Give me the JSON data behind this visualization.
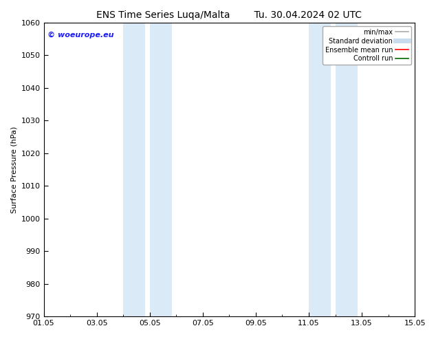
{
  "title_left": "ENS Time Series Luqa/Malta",
  "title_right": "Tu. 30.04.2024 02 UTC",
  "ylabel": "Surface Pressure (hPa)",
  "ylim": [
    970,
    1060
  ],
  "yticks": [
    970,
    980,
    990,
    1000,
    1010,
    1020,
    1030,
    1040,
    1050,
    1060
  ],
  "xtick_labels": [
    "01.05",
    "03.05",
    "05.05",
    "07.05",
    "09.05",
    "11.05",
    "13.05",
    "15.05"
  ],
  "xtick_positions": [
    0,
    2,
    4,
    6,
    8,
    10,
    12,
    14
  ],
  "x_days": 14,
  "shaded_bands": [
    {
      "x_start": 3.0,
      "x_end": 3.83,
      "color": "#daeaf7"
    },
    {
      "x_start": 4.0,
      "x_end": 4.83,
      "color": "#daeaf7"
    },
    {
      "x_start": 10.0,
      "x_end": 10.83,
      "color": "#daeaf7"
    },
    {
      "x_start": 11.0,
      "x_end": 11.83,
      "color": "#daeaf7"
    }
  ],
  "watermark_text": "© woeurope.eu",
  "watermark_color": "#1a1aff",
  "legend_items": [
    {
      "label": "min/max",
      "color": "#aaaaaa",
      "lw": 1.2
    },
    {
      "label": "Standard deviation",
      "color": "#c8dced",
      "lw": 5
    },
    {
      "label": "Ensemble mean run",
      "color": "#ff0000",
      "lw": 1.2
    },
    {
      "label": "Controll run",
      "color": "#006600",
      "lw": 1.2
    }
  ],
  "bg_color": "#ffffff",
  "spine_color": "#000000",
  "title_fontsize": 10,
  "ylabel_fontsize": 8,
  "tick_fontsize": 8,
  "legend_fontsize": 7,
  "watermark_fontsize": 8
}
